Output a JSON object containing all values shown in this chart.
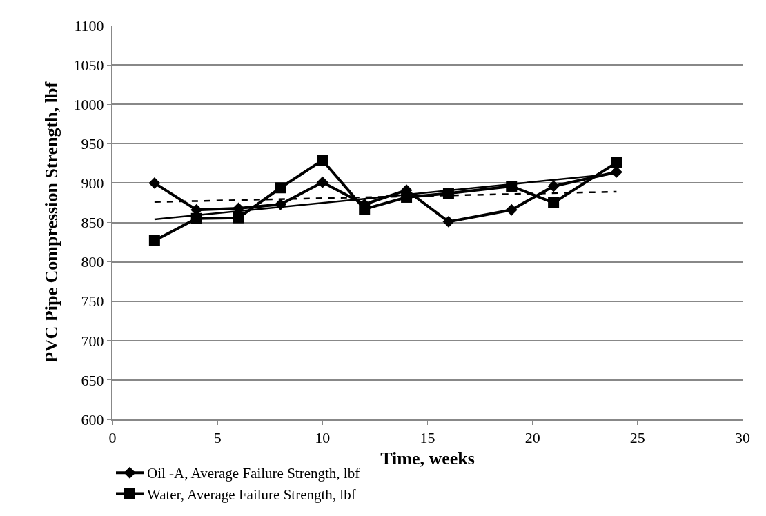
{
  "chart_data": {
    "type": "line",
    "xlabel": "Time, weeks",
    "ylabel": "PVC Pipe Compression Strength, lbf",
    "x": [
      2,
      4,
      6,
      8,
      10,
      12,
      14,
      16,
      19,
      21,
      24
    ],
    "series": [
      {
        "name": "Oil -A, Average Failure Strength, lbf",
        "color": "#000000",
        "marker": "diamond",
        "values": [
          900,
          866,
          868,
          873,
          901,
          873,
          891,
          851,
          866,
          896,
          914
        ]
      },
      {
        "name": "Water, Average Failure Strength, lbf",
        "color": "#000000",
        "marker": "square",
        "values": [
          827,
          855,
          856,
          894,
          929,
          867,
          882,
          887,
          896,
          875,
          926
        ]
      },
      {
        "type": "line",
        "color": "#000000",
        "line_style": "dashed",
        "marker": "none",
        "x": [
          2,
          12,
          24
        ],
        "values": [
          876,
          882,
          889
        ]
      },
      {
        "type": "line",
        "color": "#000000",
        "line_style": "solid",
        "marker": "none",
        "x": [
          2,
          12,
          24
        ],
        "values": [
          854,
          880,
          912
        ]
      }
    ],
    "xlim": [
      0,
      30
    ],
    "xticks": [
      0,
      5,
      10,
      15,
      20,
      25,
      30
    ],
    "ylim": [
      600,
      1100
    ],
    "yticks": [
      600,
      650,
      700,
      750,
      800,
      850,
      900,
      950,
      1000,
      1050,
      1100
    ],
    "grid": "y",
    "legend": "bottom"
  }
}
